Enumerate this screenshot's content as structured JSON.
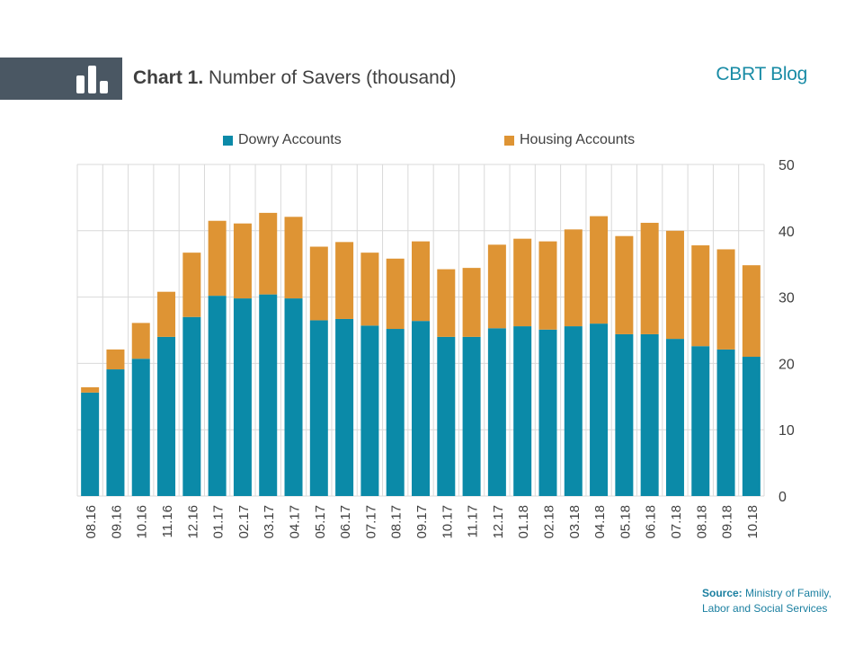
{
  "header": {
    "title_bold": "Chart 1.",
    "title_rest": " Number of Savers (thousand)",
    "brand": "CBRT Blog",
    "icon": "bar-chart-icon"
  },
  "legend": {
    "dowry": "Dowry Accounts",
    "housing": "Housing Accounts"
  },
  "source": {
    "label": "Source:",
    "text_line1": " Ministry of Family,",
    "text_line2": "Labor and Social Services"
  },
  "colors": {
    "dowry": "#0b8aa8",
    "housing": "#de9434",
    "grid": "#d9d9d9",
    "header_band": "#4a5763",
    "brand": "#1a8ca6"
  },
  "chart_data": {
    "type": "bar",
    "stacked": true,
    "categories": [
      "08.16",
      "09.16",
      "10.16",
      "11.16",
      "12.16",
      "01.17",
      "02.17",
      "03.17",
      "04.17",
      "05.17",
      "06.17",
      "07.17",
      "08.17",
      "09.17",
      "10.17",
      "11.17",
      "12.17",
      "01.18",
      "02.18",
      "03.18",
      "04.18",
      "05.18",
      "06.18",
      "07.18",
      "08.18",
      "09.18",
      "10.18"
    ],
    "series": [
      {
        "name": "Dowry Accounts",
        "values": [
          15.6,
          19.1,
          20.7,
          24.0,
          27.0,
          30.2,
          29.8,
          30.4,
          29.8,
          26.5,
          26.7,
          25.7,
          25.2,
          26.4,
          24.0,
          24.0,
          25.3,
          25.6,
          25.1,
          25.6,
          26.0,
          24.4,
          24.4,
          23.7,
          22.6,
          22.1,
          21.0
        ]
      },
      {
        "name": "Housing Accounts",
        "values": [
          0.8,
          3.0,
          5.4,
          6.8,
          9.7,
          11.3,
          11.3,
          12.3,
          12.3,
          11.1,
          11.6,
          11.0,
          10.6,
          12.0,
          10.2,
          10.4,
          12.6,
          13.2,
          13.3,
          14.6,
          16.2,
          14.8,
          16.8,
          16.3,
          15.2,
          15.1,
          13.8
        ]
      }
    ],
    "yaxis": {
      "position": "right",
      "min": 0,
      "max": 50,
      "ticks": [
        0,
        10,
        20,
        30,
        40,
        50
      ]
    },
    "xlabel": "",
    "ylabel": "",
    "grid": true,
    "legend_position": "top"
  }
}
